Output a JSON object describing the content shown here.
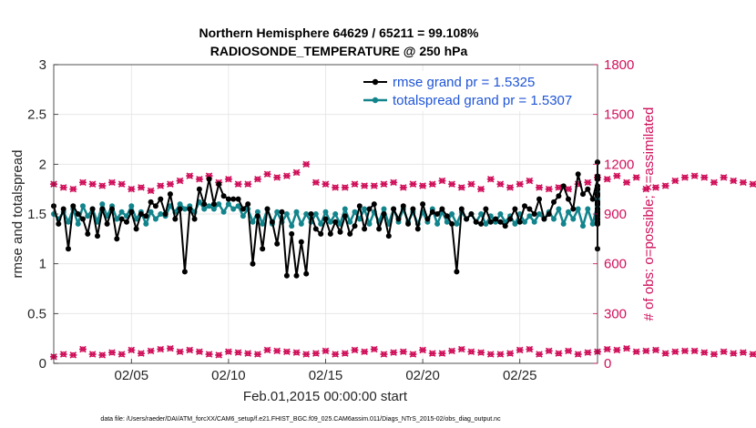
{
  "chart_data": {
    "type": "line",
    "title_line1": "Northern Hemisphere 64629 / 65211 = 99.108%",
    "title_line2": "RADIOSONDE_TEMPERATURE @ 250 hPa",
    "xlabel": "Feb.01,2015 00:00:00 start",
    "ylabel_left": "rmse and totalspread",
    "ylabel_right": "# of obs: o=possible; ×=assimilated",
    "footnote": "data file: /Users/raeder/DAI/ATM_forcXX/CAM6_setup/f.e21.FHIST_BGC.f09_025.CAM6assim.011/Diags_NTrS_2015-02/obs_diag_output.nc",
    "x_range_days": [
      1,
      29
    ],
    "x_ticks": [
      {
        "day": 5,
        "label": "02/05"
      },
      {
        "day": 10,
        "label": "02/10"
      },
      {
        "day": 15,
        "label": "02/15"
      },
      {
        "day": 20,
        "label": "02/20"
      },
      {
        "day": 25,
        "label": "02/25"
      }
    ],
    "ylim_left": [
      0,
      3
    ],
    "yticks_left": [
      "0",
      "0.5",
      "1",
      "1.5",
      "2",
      "2.5",
      "3"
    ],
    "yticks_left_values": [
      0,
      0.5,
      1,
      1.5,
      2,
      2.5,
      3
    ],
    "ylim_right": [
      0,
      1800
    ],
    "yticks_right": [
      "0",
      "300",
      "600",
      "900",
      "1200",
      "1500",
      "1800"
    ],
    "yticks_right_values": [
      0,
      300,
      600,
      900,
      1200,
      1500,
      1800
    ],
    "grid": true,
    "legend_position": "top-right",
    "x_start_day": 1.0,
    "x_step_days": 0.25,
    "series": [
      {
        "name": "rmse grand pr = 1.5325",
        "color": "#000000",
        "values": [
          1.58,
          1.4,
          1.55,
          1.15,
          1.58,
          1.5,
          1.45,
          1.3,
          1.55,
          1.28,
          1.55,
          1.4,
          1.55,
          1.25,
          1.45,
          1.42,
          1.52,
          1.35,
          1.5,
          1.48,
          1.62,
          1.58,
          1.65,
          1.5,
          1.7,
          1.45,
          1.55,
          0.92,
          1.55,
          1.45,
          1.75,
          1.6,
          1.85,
          1.6,
          1.8,
          1.68,
          1.65,
          1.65,
          1.65,
          1.55,
          1.6,
          1.0,
          1.48,
          1.15,
          1.55,
          1.42,
          1.2,
          1.52,
          0.88,
          1.3,
          0.88,
          1.22,
          0.9,
          1.5,
          1.35,
          1.3,
          1.45,
          1.3,
          1.42,
          1.32,
          1.48,
          1.3,
          1.38,
          1.58,
          1.35,
          1.55,
          1.6,
          1.35,
          1.5,
          1.28,
          1.55,
          1.45,
          1.58,
          1.4,
          1.55,
          1.35,
          1.6,
          1.45,
          1.52,
          1.5,
          1.55,
          1.48,
          1.4,
          0.92,
          1.55,
          1.45,
          1.5,
          1.42,
          1.4,
          1.55,
          1.42,
          1.45,
          1.42,
          1.38,
          1.45,
          1.55,
          1.42,
          1.58,
          1.55,
          1.5,
          1.65,
          1.45,
          1.5,
          1.62,
          1.68,
          1.78,
          1.65,
          1.55,
          1.9,
          1.7,
          1.75,
          1.65,
          1.85,
          1.7,
          1.5,
          1.55,
          1.6,
          1.52,
          1.62,
          1.68,
          1.78,
          1.75,
          1.88,
          1.42,
          1.75,
          1.45,
          1.7,
          1.4,
          2.02,
          1.6,
          2.02,
          1.62,
          1.85,
          1.55,
          1.4,
          1.62,
          1.42,
          1.6,
          1.4,
          1.42,
          1.78,
          1.45,
          1.48,
          1.15,
          1.4,
          1.52,
          1.4,
          1.6,
          1.75,
          1.42,
          1.52,
          1.52
        ]
      },
      {
        "name": "totalspread grand pr = 1.5307",
        "color": "#12848c",
        "values": [
          1.5,
          1.45,
          1.52,
          1.42,
          1.55,
          1.4,
          1.58,
          1.48,
          1.55,
          1.42,
          1.6,
          1.48,
          1.58,
          1.45,
          1.52,
          1.48,
          1.58,
          1.45,
          1.52,
          1.4,
          1.52,
          1.45,
          1.5,
          1.48,
          1.58,
          1.52,
          1.6,
          1.55,
          1.58,
          1.52,
          1.62,
          1.55,
          1.58,
          1.55,
          1.6,
          1.52,
          1.6,
          1.55,
          1.58,
          1.48,
          1.55,
          1.42,
          1.52,
          1.4,
          1.55,
          1.4,
          1.52,
          1.42,
          1.5,
          1.38,
          1.52,
          1.4,
          1.5,
          1.42,
          1.5,
          1.4,
          1.52,
          1.42,
          1.5,
          1.4,
          1.55,
          1.42,
          1.52,
          1.45,
          1.55,
          1.4,
          1.52,
          1.42,
          1.55,
          1.4,
          1.55,
          1.42,
          1.55,
          1.42,
          1.52,
          1.4,
          1.52,
          1.42,
          1.55,
          1.4,
          1.52,
          1.42,
          1.5,
          1.4,
          1.52,
          1.45,
          1.5,
          1.42,
          1.5,
          1.4,
          1.48,
          1.42,
          1.5,
          1.42,
          1.48,
          1.4,
          1.5,
          1.42,
          1.48,
          1.42,
          1.5,
          1.45,
          1.52,
          1.45,
          1.55,
          1.4,
          1.52,
          1.45,
          1.55,
          1.38,
          1.55,
          1.4,
          1.6,
          1.45,
          1.55,
          1.48,
          1.58,
          1.5,
          1.62,
          1.55,
          1.65,
          1.55,
          1.7,
          1.6,
          1.75,
          1.55,
          1.72,
          1.52,
          1.65,
          1.55,
          1.68,
          1.55,
          1.6,
          1.52,
          1.58,
          1.55,
          1.62,
          1.5,
          1.58,
          1.48,
          1.6,
          1.48,
          1.52,
          1.5,
          1.55,
          1.42,
          1.5,
          1.45,
          1.52,
          1.45
        ]
      }
    ],
    "obs_counts": {
      "color": "#d0105b",
      "x_start_day": 1.0,
      "x_step_days": 0.5,
      "possible_upper": [
        1080,
        1060,
        1050,
        1090,
        1080,
        1070,
        1090,
        1080,
        1050,
        1060,
        1040,
        1070,
        1080,
        1100,
        1130,
        1110,
        1130,
        1090,
        1110,
        1080,
        1080,
        1110,
        1140,
        1120,
        1130,
        1150,
        1200,
        1090,
        1080,
        1060,
        1060,
        1080,
        1070,
        1070,
        1080,
        1090,
        1060,
        1080,
        1070,
        1080,
        1100,
        1080,
        1060,
        1080,
        1050,
        1110,
        1080,
        1060,
        1080,
        1100,
        1060,
        1050,
        1060,
        1050,
        1080,
        1090,
        1120,
        1110,
        1130,
        1090,
        1120,
        1050,
        1060,
        1070,
        1100,
        1120,
        1130,
        1120,
        1090,
        1120,
        1100,
        1090,
        1080,
        1100,
        1080,
        1060
      ],
      "assimilated_lower": [
        40,
        55,
        50,
        85,
        55,
        50,
        65,
        55,
        80,
        60,
        75,
        85,
        90,
        70,
        80,
        70,
        55,
        50,
        70,
        65,
        60,
        55,
        80,
        75,
        70,
        65,
        55,
        60,
        75,
        55,
        60,
        80,
        70,
        85,
        55,
        65,
        70,
        55,
        80,
        60,
        60,
        75,
        85,
        70,
        65,
        55,
        55,
        60,
        80,
        85,
        55,
        75,
        60,
        75,
        55,
        65,
        70,
        85,
        80,
        90,
        70,
        75,
        80,
        60,
        70,
        75,
        75,
        65,
        55,
        70,
        60,
        65,
        55,
        55,
        40,
        0
      ]
    }
  }
}
